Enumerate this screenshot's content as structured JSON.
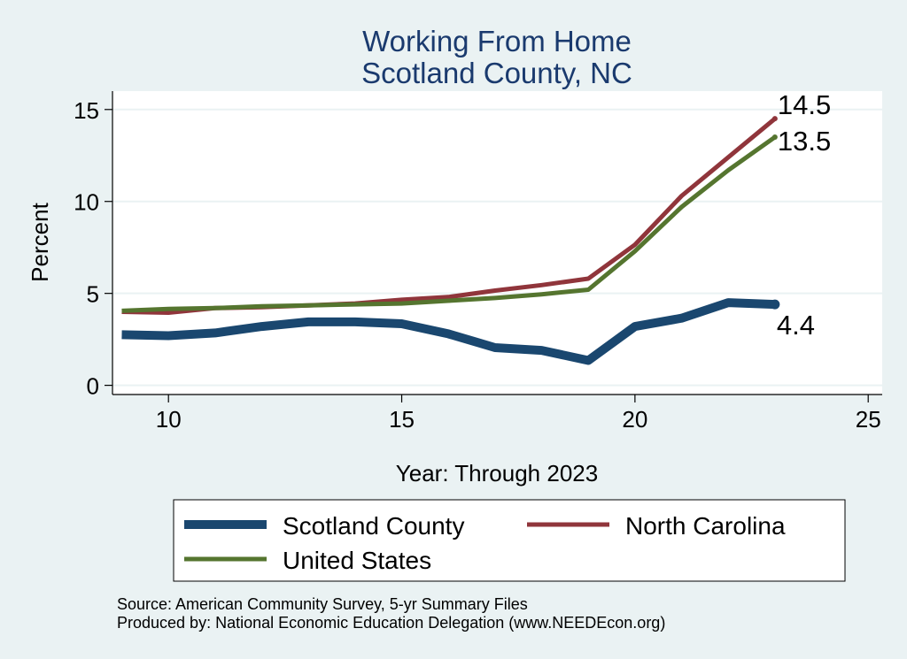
{
  "chart_data": {
    "type": "line",
    "title": "Working From Home",
    "subtitle": "Scotland County, NC",
    "xlabel": "Year: Through 2023",
    "ylabel": "Percent",
    "xlim": [
      8.8,
      25.3
    ],
    "ylim": [
      -0.5,
      16
    ],
    "x_ticks": [
      10,
      15,
      20,
      25
    ],
    "y_ticks": [
      0,
      5,
      10,
      15
    ],
    "grid": true,
    "legend_position": "bottom",
    "x": [
      9,
      10,
      11,
      12,
      13,
      14,
      15,
      16,
      17,
      18,
      19,
      20,
      21,
      22,
      23
    ],
    "series": [
      {
        "name": "Scotland County",
        "color": "#1a476f",
        "values": [
          2.75,
          2.7,
          2.85,
          3.2,
          3.45,
          3.45,
          3.35,
          2.8,
          2.05,
          1.9,
          1.35,
          3.2,
          3.65,
          4.5,
          4.4
        ],
        "end_label": "4.4"
      },
      {
        "name": "North Carolina",
        "color": "#90353b",
        "values": [
          4.0,
          3.95,
          4.2,
          4.25,
          4.35,
          4.45,
          4.65,
          4.8,
          5.15,
          5.45,
          5.8,
          7.65,
          10.3,
          12.4,
          14.5
        ],
        "end_label": "14.5"
      },
      {
        "name": "United States",
        "color": "#55752f",
        "values": [
          4.05,
          4.15,
          4.2,
          4.3,
          4.35,
          4.4,
          4.45,
          4.6,
          4.75,
          4.95,
          5.2,
          7.3,
          9.7,
          11.7,
          13.5
        ],
        "end_label": "13.5"
      }
    ],
    "source_lines": [
      "Source: American Community Survey, 5-yr Summary Files",
      "Produced by: National Economic Education Delegation (www.NEEDEcon.org)"
    ]
  }
}
